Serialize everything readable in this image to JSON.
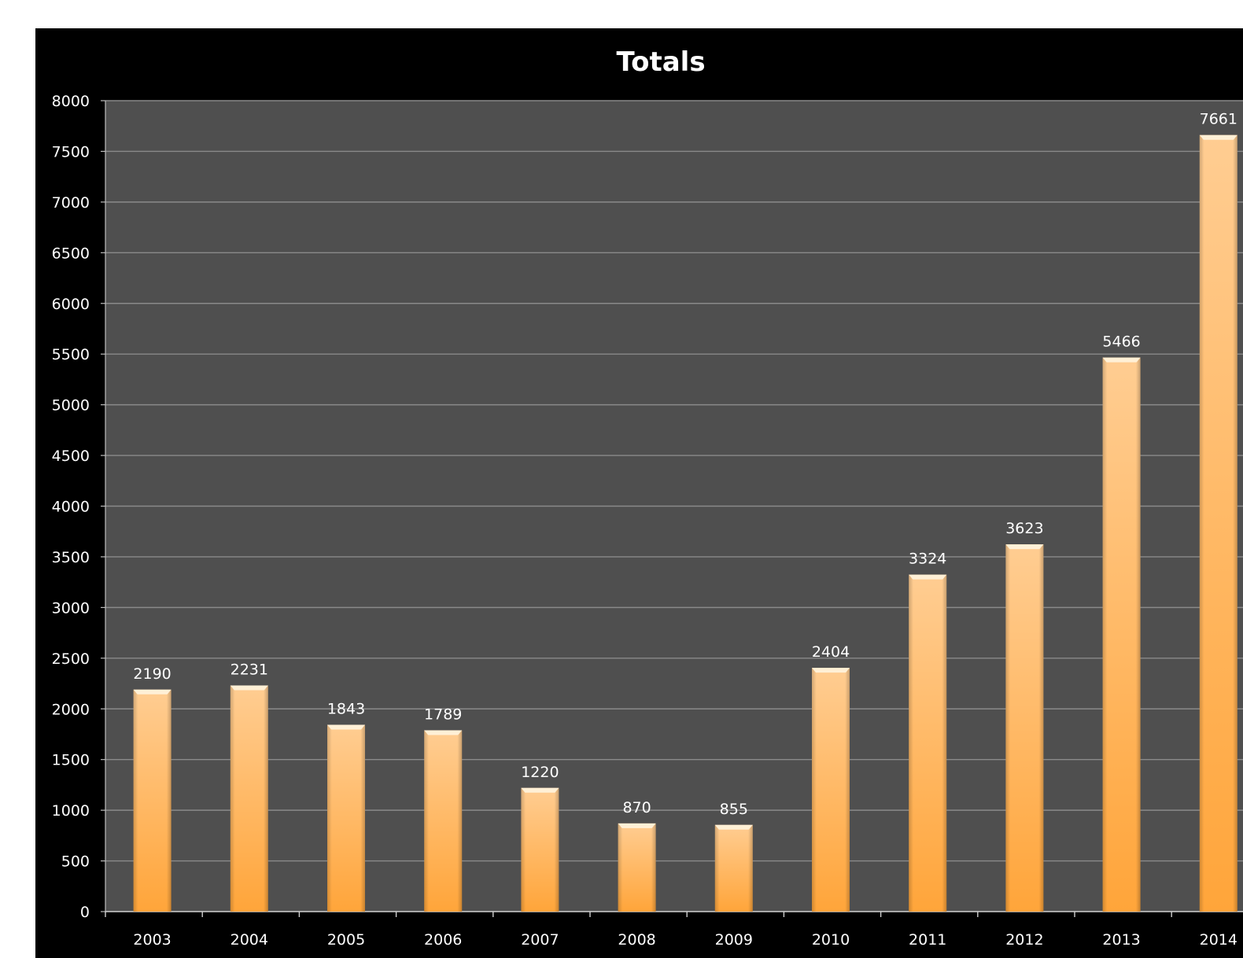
{
  "chart_data": {
    "type": "bar",
    "title": "Totals",
    "xlabel": "",
    "ylabel": "",
    "categories": [
      "2003",
      "2004",
      "2005",
      "2006",
      "2007",
      "2008",
      "2009",
      "2010",
      "2011",
      "2012",
      "2013",
      "2014"
    ],
    "values": [
      2190,
      2231,
      1843,
      1789,
      1220,
      870,
      855,
      2404,
      3324,
      3623,
      5466,
      7661
    ],
    "data_labels": [
      "2190",
      "2231",
      "1843",
      "1789",
      "1220",
      "870",
      "855",
      "2404",
      "3324",
      "3623",
      "5466",
      "7661"
    ],
    "ylim": [
      0,
      8000
    ],
    "y_ticks": [
      0,
      500,
      1000,
      1500,
      2000,
      2500,
      3000,
      3500,
      4000,
      4500,
      5000,
      5500,
      6000,
      6500,
      7000,
      7500,
      8000
    ],
    "grid": true,
    "legend": "none",
    "colors": {
      "background": "#000000",
      "plot_area": "#4f4f4f",
      "gridline": "#8a8a8a",
      "bar_top": "#ffcd92",
      "bar_bottom": "#ffa53a",
      "bar_cap": "#fff0d6",
      "text": "#ffffff"
    }
  }
}
